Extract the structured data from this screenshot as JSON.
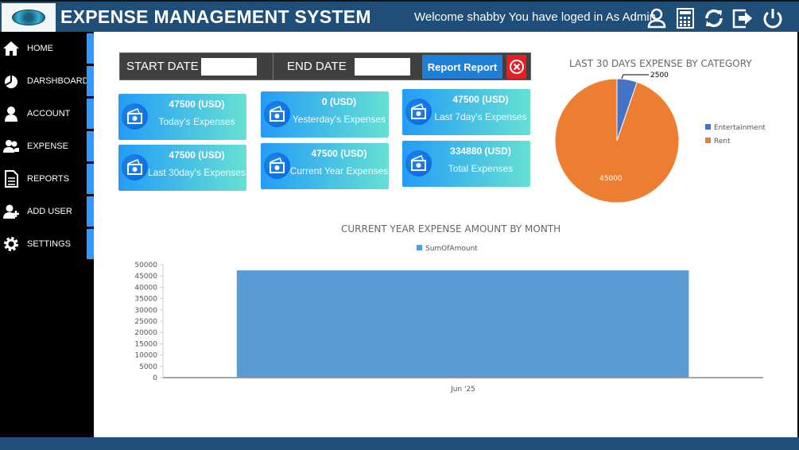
{
  "header": {
    "title": "EXPENSE MANAGEMENT SYSTEM",
    "welcome": "Welcome shabby You have loged in As Admin",
    "icons": [
      "user-icon",
      "calculator-icon",
      "refresh-icon",
      "logout-icon",
      "power-icon"
    ]
  },
  "sidebar": {
    "items": [
      {
        "label": "HOME",
        "icon": "home-icon"
      },
      {
        "label": "DARSHBOARD",
        "icon": "dashboard-icon"
      },
      {
        "label": "ACCOUNT",
        "icon": "account-icon"
      },
      {
        "label": "EXPENSE",
        "icon": "expense-icon"
      },
      {
        "label": "REPORTS",
        "icon": "reports-icon"
      },
      {
        "label": "ADD USER",
        "icon": "add-user-icon"
      },
      {
        "label": "SETTINGS",
        "icon": "gear-icon"
      }
    ]
  },
  "filter": {
    "start_label": "START DATE",
    "start_value": "",
    "end_label": "END DATE",
    "end_value": "",
    "report_button": "Report Report"
  },
  "cards": [
    {
      "amount": "47500 (USD)",
      "label": "Today's Expenses"
    },
    {
      "amount": "0 (USD)",
      "label": "Yesterday's Expenses"
    },
    {
      "amount": "47500 (USD)",
      "label": "Last 7day's Expenses"
    },
    {
      "amount": "47500 (USD)",
      "label": "Last 30day's Expenses"
    },
    {
      "amount": "47500 (USD)",
      "label": "Current Year Expenses"
    },
    {
      "amount": "334880 (USD)",
      "label": "Total Expenses"
    }
  ],
  "colors": {
    "header": "#1f4e79",
    "accent": "#3399ff",
    "entertainment": "#4472c4",
    "rent": "#ed7d31",
    "bar": "#5b9bd5"
  },
  "chart_data": [
    {
      "type": "pie",
      "title": "LAST 30 DAYS EXPENSE BY CATEGORY",
      "categories": [
        "Entertainment",
        "Rent"
      ],
      "values": [
        2500,
        45000
      ],
      "data_labels": [
        "2500",
        "45000"
      ],
      "legend": "right"
    },
    {
      "type": "bar",
      "title": "CURRENT YEAR EXPENSE AMOUNT BY MONTH",
      "categories": [
        "Jun '25"
      ],
      "series": [
        {
          "name": "SumOfAmount",
          "values": [
            47500
          ]
        }
      ],
      "ylim": [
        0,
        50000
      ],
      "yticks": [
        "0",
        "5000",
        "10000",
        "15000",
        "20000",
        "25000",
        "30000",
        "35000",
        "40000",
        "45000",
        "50000"
      ],
      "legend": "top"
    }
  ]
}
